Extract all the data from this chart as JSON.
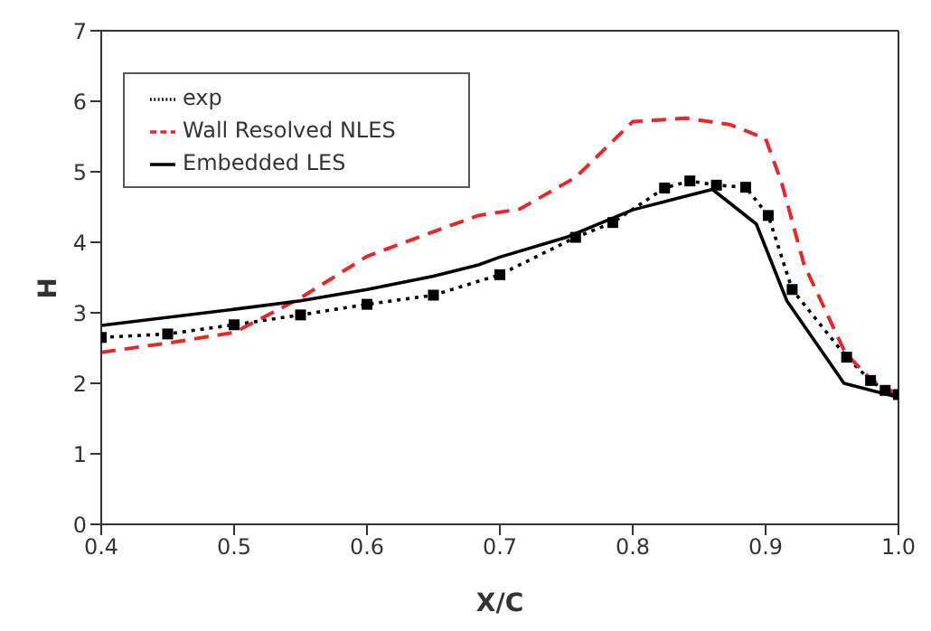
{
  "chart_data": {
    "type": "line",
    "xlabel": "X/C",
    "ylabel": "H",
    "xlim": [
      0.4,
      1.0
    ],
    "xticks": [
      0.4,
      0.5,
      0.6,
      0.7,
      0.8,
      0.9,
      {
        "value": 1,
        "label": "1.0"
      }
    ],
    "ylim": [
      0,
      7
    ],
    "yticks": [
      0,
      1,
      2,
      3,
      4,
      5,
      6,
      7
    ],
    "grid": false,
    "legend": "top left",
    "series": [
      {
        "name": "exp",
        "color": "#000000",
        "marker": "square",
        "line_style": "dotted",
        "x": [
          0.4,
          0.45,
          0.5,
          0.55,
          0.6,
          0.65,
          0.7,
          0.757,
          0.785,
          0.824,
          0.843,
          0.863,
          0.885,
          0.902,
          0.92,
          0.961,
          0.979,
          0.99,
          1.0
        ],
        "values": [
          2.65,
          2.7,
          2.83,
          2.97,
          3.12,
          3.25,
          3.54,
          4.07,
          4.28,
          4.77,
          4.87,
          4.81,
          4.78,
          4.38,
          3.33,
          2.37,
          2.04,
          1.9,
          1.84
        ]
      },
      {
        "name": "Wall Resolved NLES",
        "color": "#e8262b",
        "marker": "none",
        "line_style": "dashed",
        "x": [
          0.4,
          0.45,
          0.5,
          0.55,
          0.6,
          0.65,
          0.684,
          0.715,
          0.757,
          0.781,
          0.8,
          0.84,
          0.873,
          0.9,
          0.912,
          0.929,
          0.96,
          0.98,
          1.0
        ],
        "values": [
          2.44,
          2.57,
          2.72,
          3.21,
          3.8,
          4.15,
          4.38,
          4.47,
          4.92,
          5.36,
          5.71,
          5.76,
          5.67,
          5.47,
          4.85,
          3.68,
          2.43,
          2.04,
          1.84
        ]
      },
      {
        "name": "Embedded LES",
        "color": "#000000",
        "marker": "none",
        "line_style": "solid",
        "x": [
          0.4,
          0.5,
          0.55,
          0.6,
          0.65,
          0.684,
          0.7,
          0.75,
          0.8,
          0.86,
          0.893,
          0.916,
          0.959,
          1.0
        ],
        "values": [
          2.82,
          3.05,
          3.17,
          3.33,
          3.52,
          3.68,
          3.79,
          4.07,
          4.46,
          4.75,
          4.26,
          3.17,
          2.0,
          1.8
        ]
      }
    ]
  }
}
